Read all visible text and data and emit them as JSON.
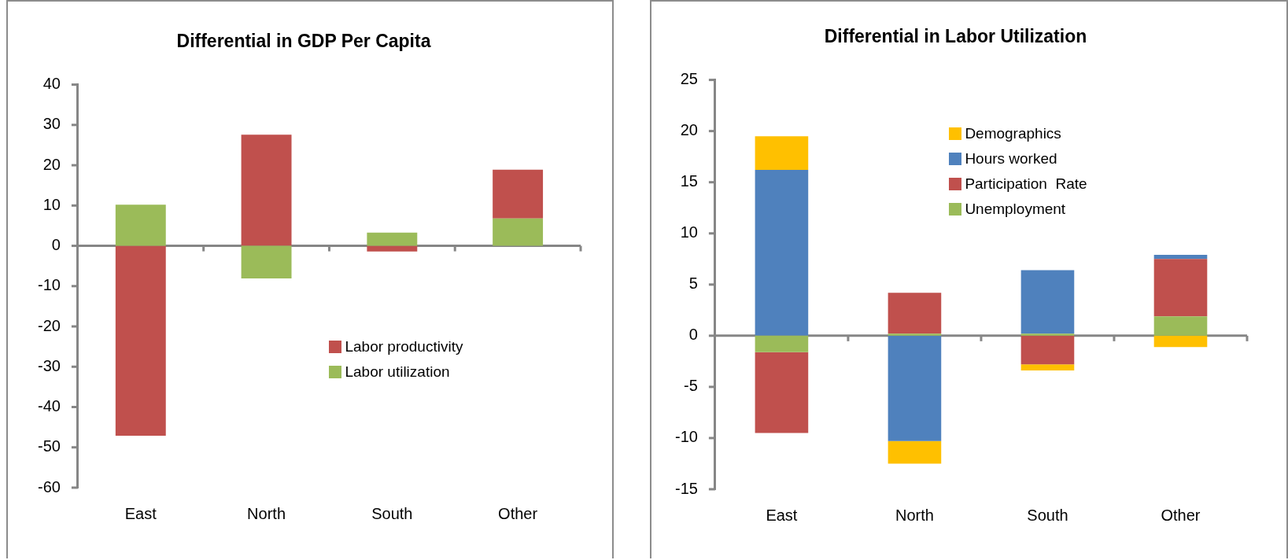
{
  "chart_data": [
    {
      "type": "bar",
      "title": "Differential in GDP Per Capita",
      "categories": [
        "East",
        "North",
        "South",
        "Other"
      ],
      "stacked": true,
      "series": [
        {
          "name": "Labor utilization",
          "color": "#9bbb59",
          "values": [
            10.2,
            -8.1,
            3.3,
            6.8
          ]
        },
        {
          "name": "Labor productivity",
          "color": "#c0504d",
          "values": [
            -47.1,
            27.6,
            -1.4,
            12.1
          ]
        }
      ],
      "ylim": [
        -60,
        40
      ],
      "yticks": [
        -60,
        -50,
        -40,
        -30,
        -20,
        -10,
        0,
        10,
        20,
        30,
        40
      ],
      "legend": "bottom right"
    },
    {
      "type": "bar",
      "title": "Differential in Labor Utilization",
      "categories": [
        "East",
        "North",
        "South",
        "Other"
      ],
      "stacked": true,
      "series": [
        {
          "name": "Unemployment",
          "color": "#9bbb59",
          "values": [
            -1.6,
            0.2,
            0.2,
            1.9
          ]
        },
        {
          "name": "Participation  Rate",
          "color": "#c0504d",
          "values": [
            -7.9,
            4.0,
            -2.8,
            5.6
          ]
        },
        {
          "name": "Hours worked",
          "color": "#4f81bd",
          "values": [
            16.2,
            -10.3,
            6.2,
            0.4
          ]
        },
        {
          "name": "Demographics",
          "color": "#ffc000",
          "values": [
            3.3,
            -2.2,
            -0.6,
            -1.1
          ]
        }
      ],
      "ylim": [
        -15,
        25
      ],
      "yticks": [
        -15,
        -10,
        -5,
        0,
        5,
        10,
        15,
        20,
        25
      ],
      "legend": "top"
    }
  ]
}
